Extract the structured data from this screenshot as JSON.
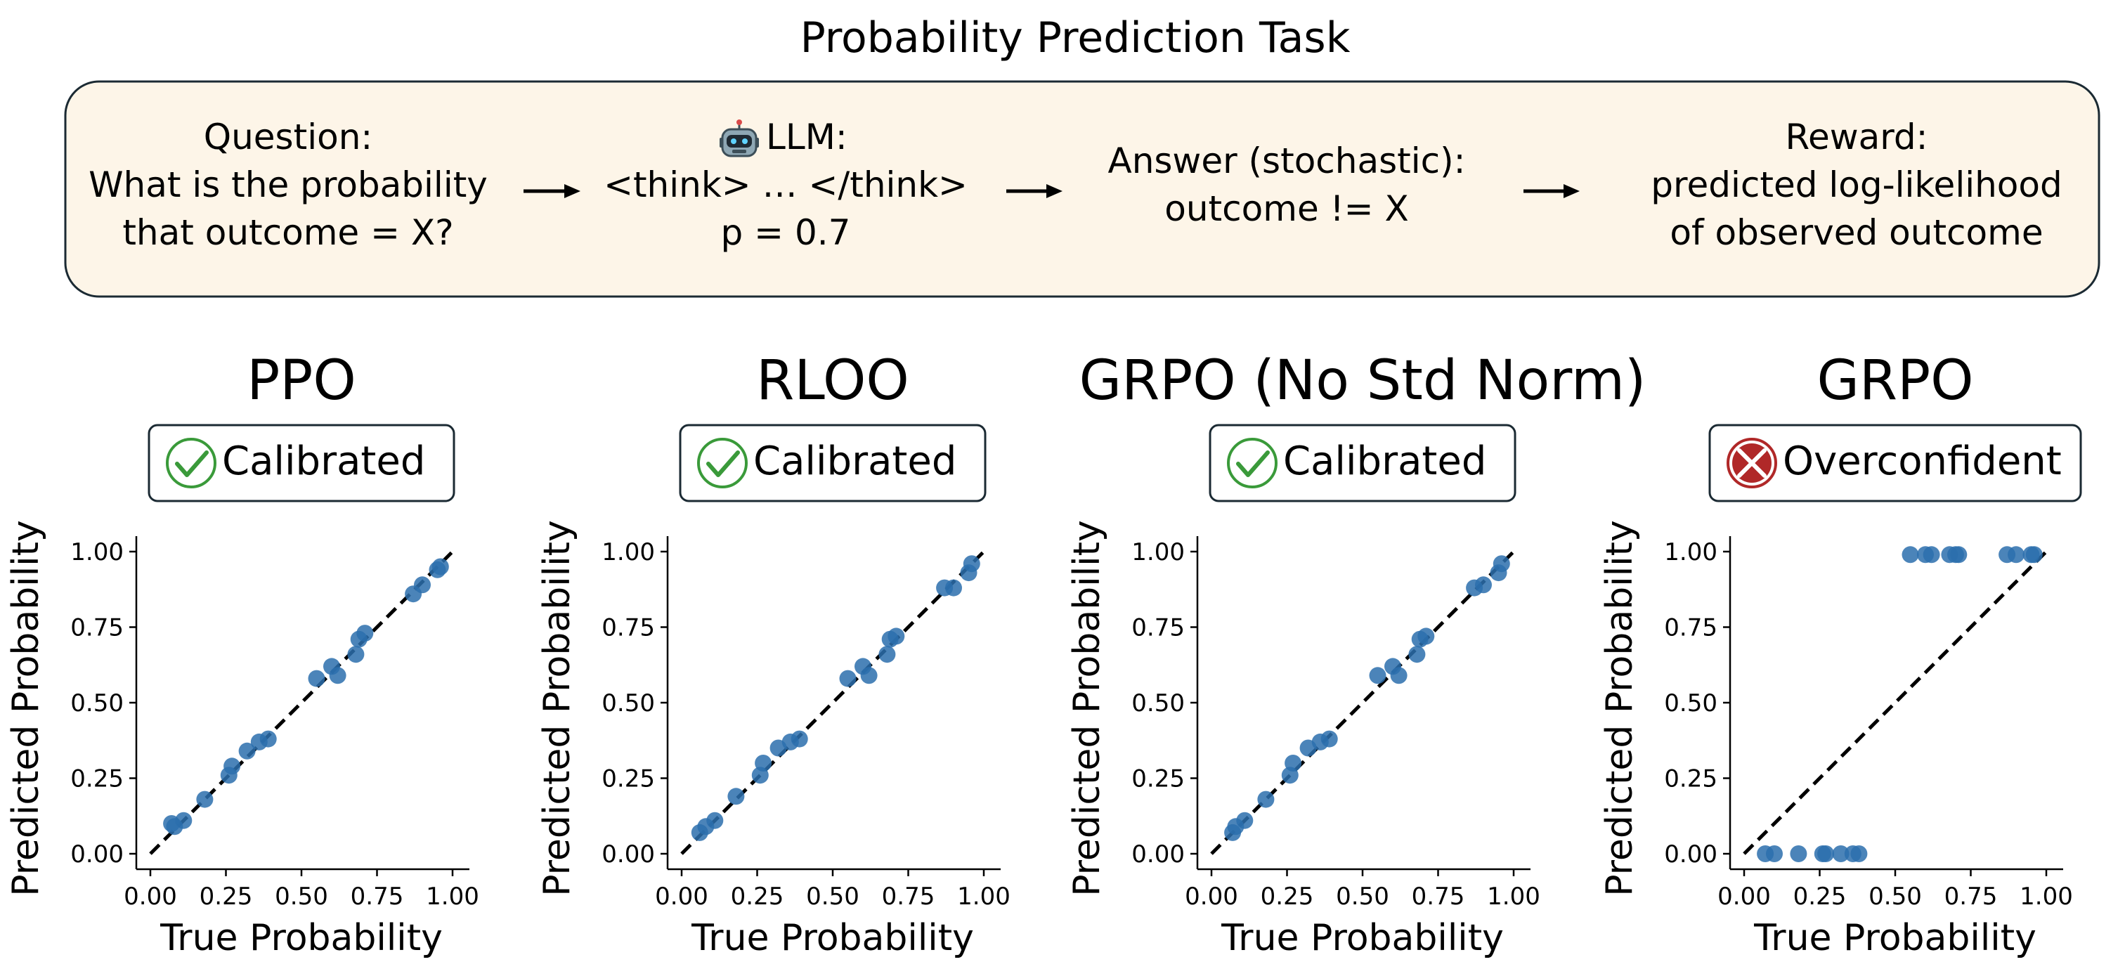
{
  "title": "Probability Prediction Task",
  "pipeline": {
    "question": {
      "label": "Question:",
      "lines": [
        "What is the probability",
        "that outcome = X?"
      ]
    },
    "llm": {
      "icon": "robot-icon",
      "label": "LLM:",
      "lines": [
        "<think> … </think>",
        "p = 0.7"
      ]
    },
    "answer": {
      "label": "Answer (stochastic):",
      "lines": [
        "outcome != X"
      ]
    },
    "reward": {
      "label": "Reward:",
      "lines": [
        "predicted log-likelihood",
        "of observed outcome"
      ]
    }
  },
  "colors": {
    "box_fill": "#fdf5e8",
    "box_stroke": "#1b2a33",
    "point": "#2b6fad",
    "check": "#3a9a3a",
    "cross": "#b02828"
  },
  "chart_data": [
    {
      "type": "scatter",
      "title": "PPO",
      "badge": {
        "label": "Calibrated",
        "icon": "check-icon"
      },
      "xlabel": "True Probability",
      "ylabel": "Predicted Probability",
      "xlim": [
        0,
        1
      ],
      "ylim": [
        0,
        1
      ],
      "x_ticks": [
        "0.00",
        "0.25",
        "0.50",
        "0.75",
        "1.00"
      ],
      "y_ticks": [
        "0.00",
        "0.25",
        "0.50",
        "0.75",
        "1.00"
      ],
      "reference_line": "y = x (dashed)",
      "series": [
        {
          "x": [
            0.07,
            0.08,
            0.11,
            0.18,
            0.26,
            0.27,
            0.32,
            0.36,
            0.39,
            0.55,
            0.6,
            0.62,
            0.68,
            0.69,
            0.71,
            0.87,
            0.9,
            0.95,
            0.96
          ],
          "y": [
            0.1,
            0.09,
            0.11,
            0.18,
            0.26,
            0.29,
            0.34,
            0.37,
            0.38,
            0.58,
            0.62,
            0.59,
            0.66,
            0.71,
            0.73,
            0.86,
            0.89,
            0.94,
            0.95
          ]
        }
      ]
    },
    {
      "type": "scatter",
      "title": "RLOO",
      "badge": {
        "label": "Calibrated",
        "icon": "check-icon"
      },
      "xlabel": "True Probability",
      "ylabel": "Predicted Probability",
      "xlim": [
        0,
        1
      ],
      "ylim": [
        0,
        1
      ],
      "x_ticks": [
        "0.00",
        "0.25",
        "0.50",
        "0.75",
        "1.00"
      ],
      "y_ticks": [
        "0.00",
        "0.25",
        "0.50",
        "0.75",
        "1.00"
      ],
      "reference_line": "y = x (dashed)",
      "series": [
        {
          "x": [
            0.06,
            0.08,
            0.11,
            0.18,
            0.26,
            0.27,
            0.32,
            0.36,
            0.39,
            0.55,
            0.6,
            0.62,
            0.68,
            0.69,
            0.71,
            0.87,
            0.9,
            0.95,
            0.96
          ],
          "y": [
            0.07,
            0.09,
            0.11,
            0.19,
            0.26,
            0.3,
            0.35,
            0.37,
            0.38,
            0.58,
            0.62,
            0.59,
            0.66,
            0.71,
            0.72,
            0.88,
            0.88,
            0.93,
            0.96
          ]
        }
      ]
    },
    {
      "type": "scatter",
      "title": "GRPO (No Std Norm)",
      "badge": {
        "label": "Calibrated",
        "icon": "check-icon"
      },
      "xlabel": "True Probability",
      "ylabel": "Predicted Probability",
      "xlim": [
        0,
        1
      ],
      "ylim": [
        0,
        1
      ],
      "x_ticks": [
        "0.00",
        "0.25",
        "0.50",
        "0.75",
        "1.00"
      ],
      "y_ticks": [
        "0.00",
        "0.25",
        "0.50",
        "0.75",
        "1.00"
      ],
      "reference_line": "y = x (dashed)",
      "series": [
        {
          "x": [
            0.07,
            0.08,
            0.11,
            0.18,
            0.26,
            0.27,
            0.32,
            0.36,
            0.39,
            0.55,
            0.6,
            0.62,
            0.68,
            0.69,
            0.71,
            0.87,
            0.9,
            0.95,
            0.96
          ],
          "y": [
            0.07,
            0.09,
            0.11,
            0.18,
            0.26,
            0.3,
            0.35,
            0.37,
            0.38,
            0.59,
            0.62,
            0.59,
            0.66,
            0.71,
            0.72,
            0.88,
            0.89,
            0.93,
            0.96
          ]
        }
      ]
    },
    {
      "type": "scatter",
      "title": "GRPO",
      "badge": {
        "label": "Overconfident",
        "icon": "cross-icon"
      },
      "xlabel": "True Probability",
      "ylabel": "Predicted Probability",
      "xlim": [
        0,
        1
      ],
      "ylim": [
        0,
        1
      ],
      "x_ticks": [
        "0.00",
        "0.25",
        "0.50",
        "0.75",
        "1.00"
      ],
      "y_ticks": [
        "0.00",
        "0.25",
        "0.50",
        "0.75",
        "1.00"
      ],
      "reference_line": "y = x (dashed)",
      "series": [
        {
          "x": [
            0.07,
            0.1,
            0.18,
            0.26,
            0.27,
            0.32,
            0.36,
            0.38,
            0.55,
            0.6,
            0.62,
            0.68,
            0.7,
            0.71,
            0.87,
            0.9,
            0.95,
            0.96
          ],
          "y": [
            0.0,
            0.0,
            0.0,
            0.0,
            0.0,
            0.0,
            0.0,
            0.0,
            0.99,
            0.99,
            0.99,
            0.99,
            0.99,
            0.99,
            0.99,
            0.99,
            0.99,
            0.99
          ]
        }
      ]
    }
  ]
}
